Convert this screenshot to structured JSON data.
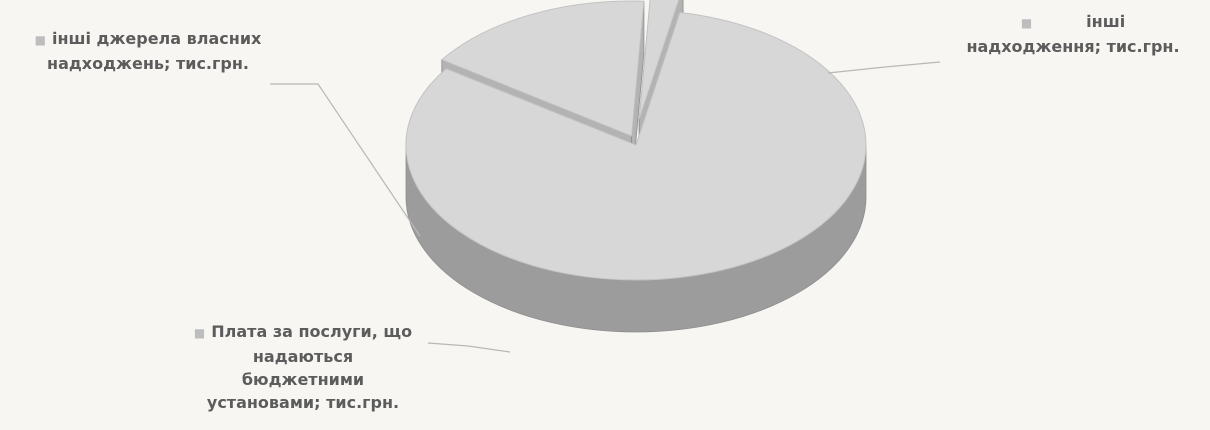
{
  "chart_data": {
    "type": "pie",
    "style": "3d",
    "slices": [
      {
        "label_lines": [
          "інші",
          "надходження; тис.грн."
        ],
        "value": 81.5
      },
      {
        "label_lines": [
          "інші джерела власних",
          "надходжень;  тис.грн."
        ],
        "value": 16.3
      },
      {
        "label_lines": [
          "Плата за послуги, що",
          "надаються",
          "бюджетними",
          "установами; тис.грн."
        ],
        "value": 2.2
      }
    ],
    "legend": "none",
    "colors": {
      "top": "#d7d7d7",
      "side": "#9c9c9c",
      "edge": "#8d8d8d",
      "leader": "#b8b8b8",
      "bullet": "#bdbdbd",
      "text": "#5c5c5c"
    }
  }
}
